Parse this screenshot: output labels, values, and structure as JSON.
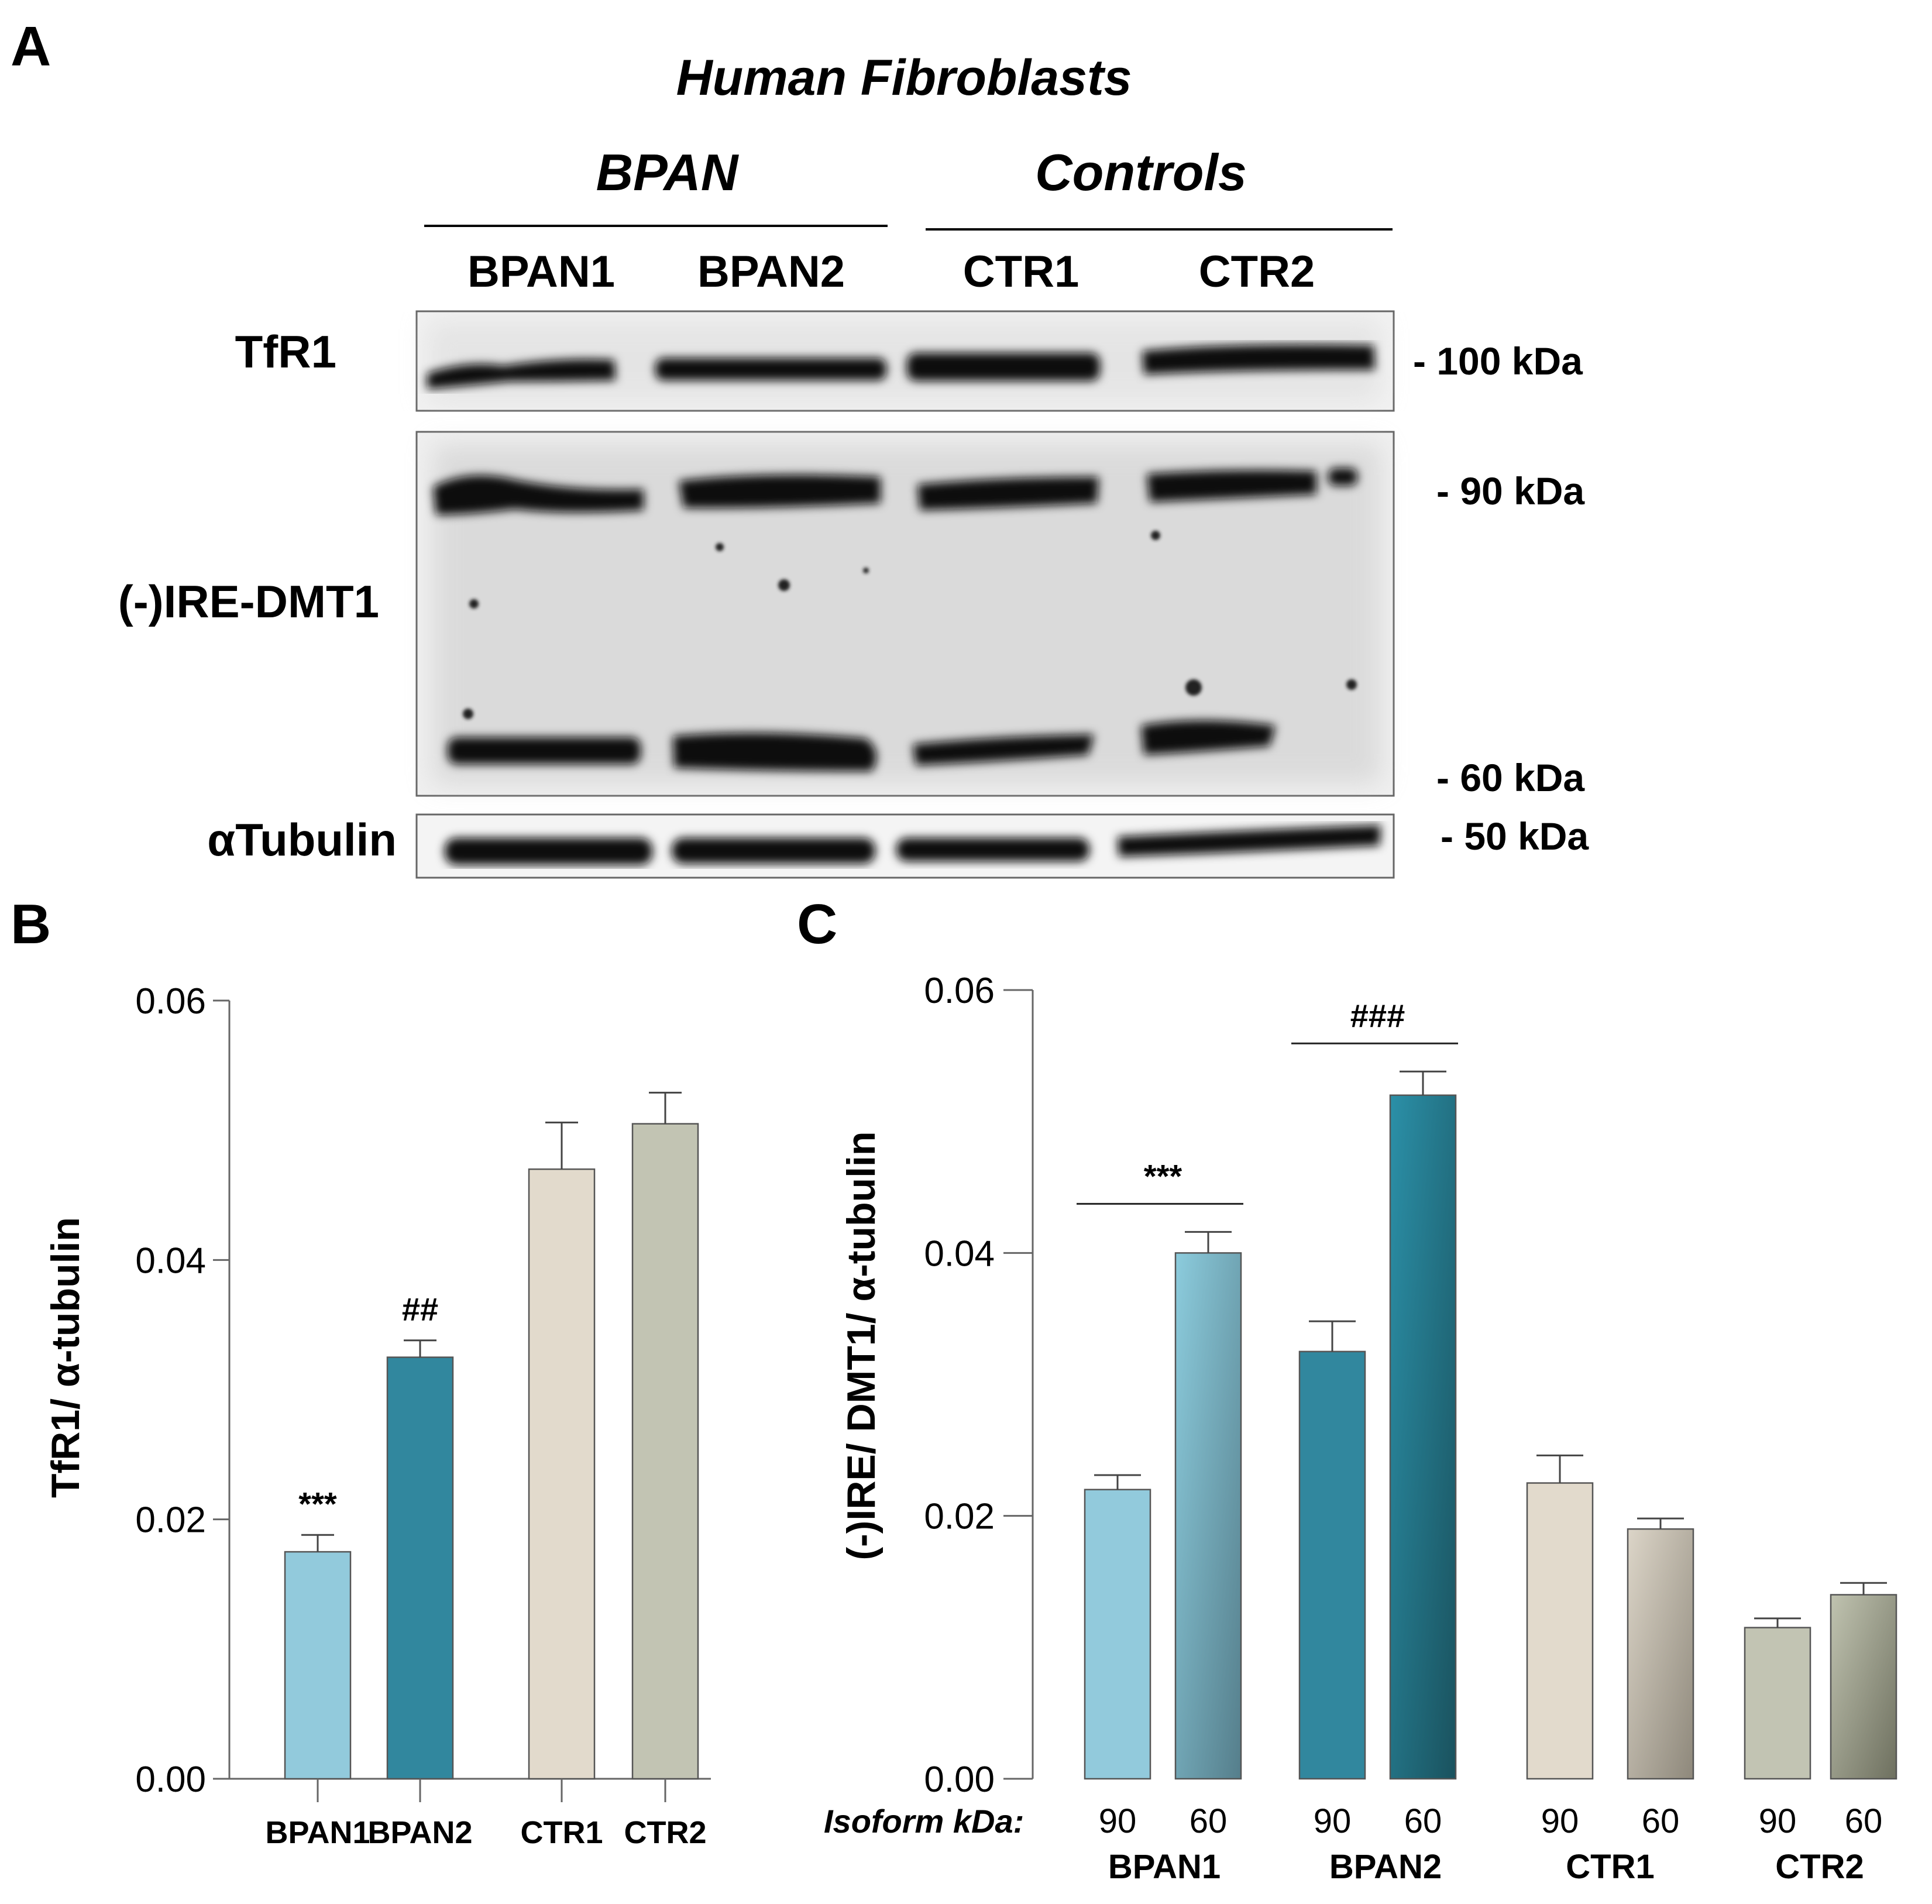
{
  "panel_a": {
    "letter": "A",
    "title": "Human Fibroblasts",
    "group_labels": [
      "BPAN",
      "Controls"
    ],
    "lane_labels": [
      "BPAN1",
      "BPAN2",
      "CTR1",
      "CTR2"
    ],
    "blot_labels": {
      "tfr1": "TfR1",
      "dmt1": "(-)IRE-DMT1",
      "tubulin": "αTubulin"
    },
    "markers": {
      "m100": "- 100 kDa",
      "m90": "- 90 kDa",
      "m60": "- 60 kDa",
      "m50": "- 50 kDa"
    }
  },
  "chart_data": [
    {
      "panel": "B",
      "type": "bar",
      "title": "",
      "xlabel": "",
      "ylabel": "TfR1/ α-tubulin",
      "ylim": [
        0,
        0.06
      ],
      "yticks": [
        "0.00",
        "0.02",
        "0.04",
        "0.06"
      ],
      "grid": false,
      "categories": [
        "BPAN1",
        "BPAN2",
        "CTR1",
        "CTR2"
      ],
      "values": [
        0.0175,
        0.0325,
        0.047,
        0.0505
      ],
      "errors": [
        0.0013,
        0.0013,
        0.0036,
        0.0024
      ],
      "annotations": [
        "***",
        "##",
        "",
        ""
      ],
      "colors": [
        "#92CADC",
        "#31879E",
        "#E2DACC",
        "#C2C4B3"
      ]
    },
    {
      "panel": "C",
      "type": "bar",
      "title": "",
      "xlabel": "Isoform kDa:",
      "ylabel": "(-)IRE/ DMT1/ α-tubulin",
      "ylim": [
        0,
        0.06
      ],
      "yticks": [
        "0.00",
        "0.02",
        "0.04",
        "0.06"
      ],
      "grid": false,
      "groups": [
        "BPAN1",
        "BPAN2",
        "CTR1",
        "CTR2"
      ],
      "isoforms": [
        "90",
        "60"
      ],
      "values": [
        [
          0.022,
          0.04
        ],
        [
          0.0325,
          0.052
        ],
        [
          0.0225,
          0.019
        ],
        [
          0.0115,
          0.014
        ]
      ],
      "errors": [
        [
          0.0011,
          0.0016
        ],
        [
          0.0023,
          0.0018
        ],
        [
          0.0021,
          0.0008
        ],
        [
          0.0007,
          0.0009
        ]
      ],
      "bracket_annotations": [
        "***",
        "###",
        "",
        ""
      ],
      "colors": [
        [
          "#92CADC",
          "#7DBACB"
        ],
        [
          "#31879E",
          "#1F7D92"
        ],
        [
          "#E2DACC",
          "#CEC6B7"
        ],
        [
          "#C2C4B3",
          "#AEB09C"
        ]
      ]
    }
  ]
}
